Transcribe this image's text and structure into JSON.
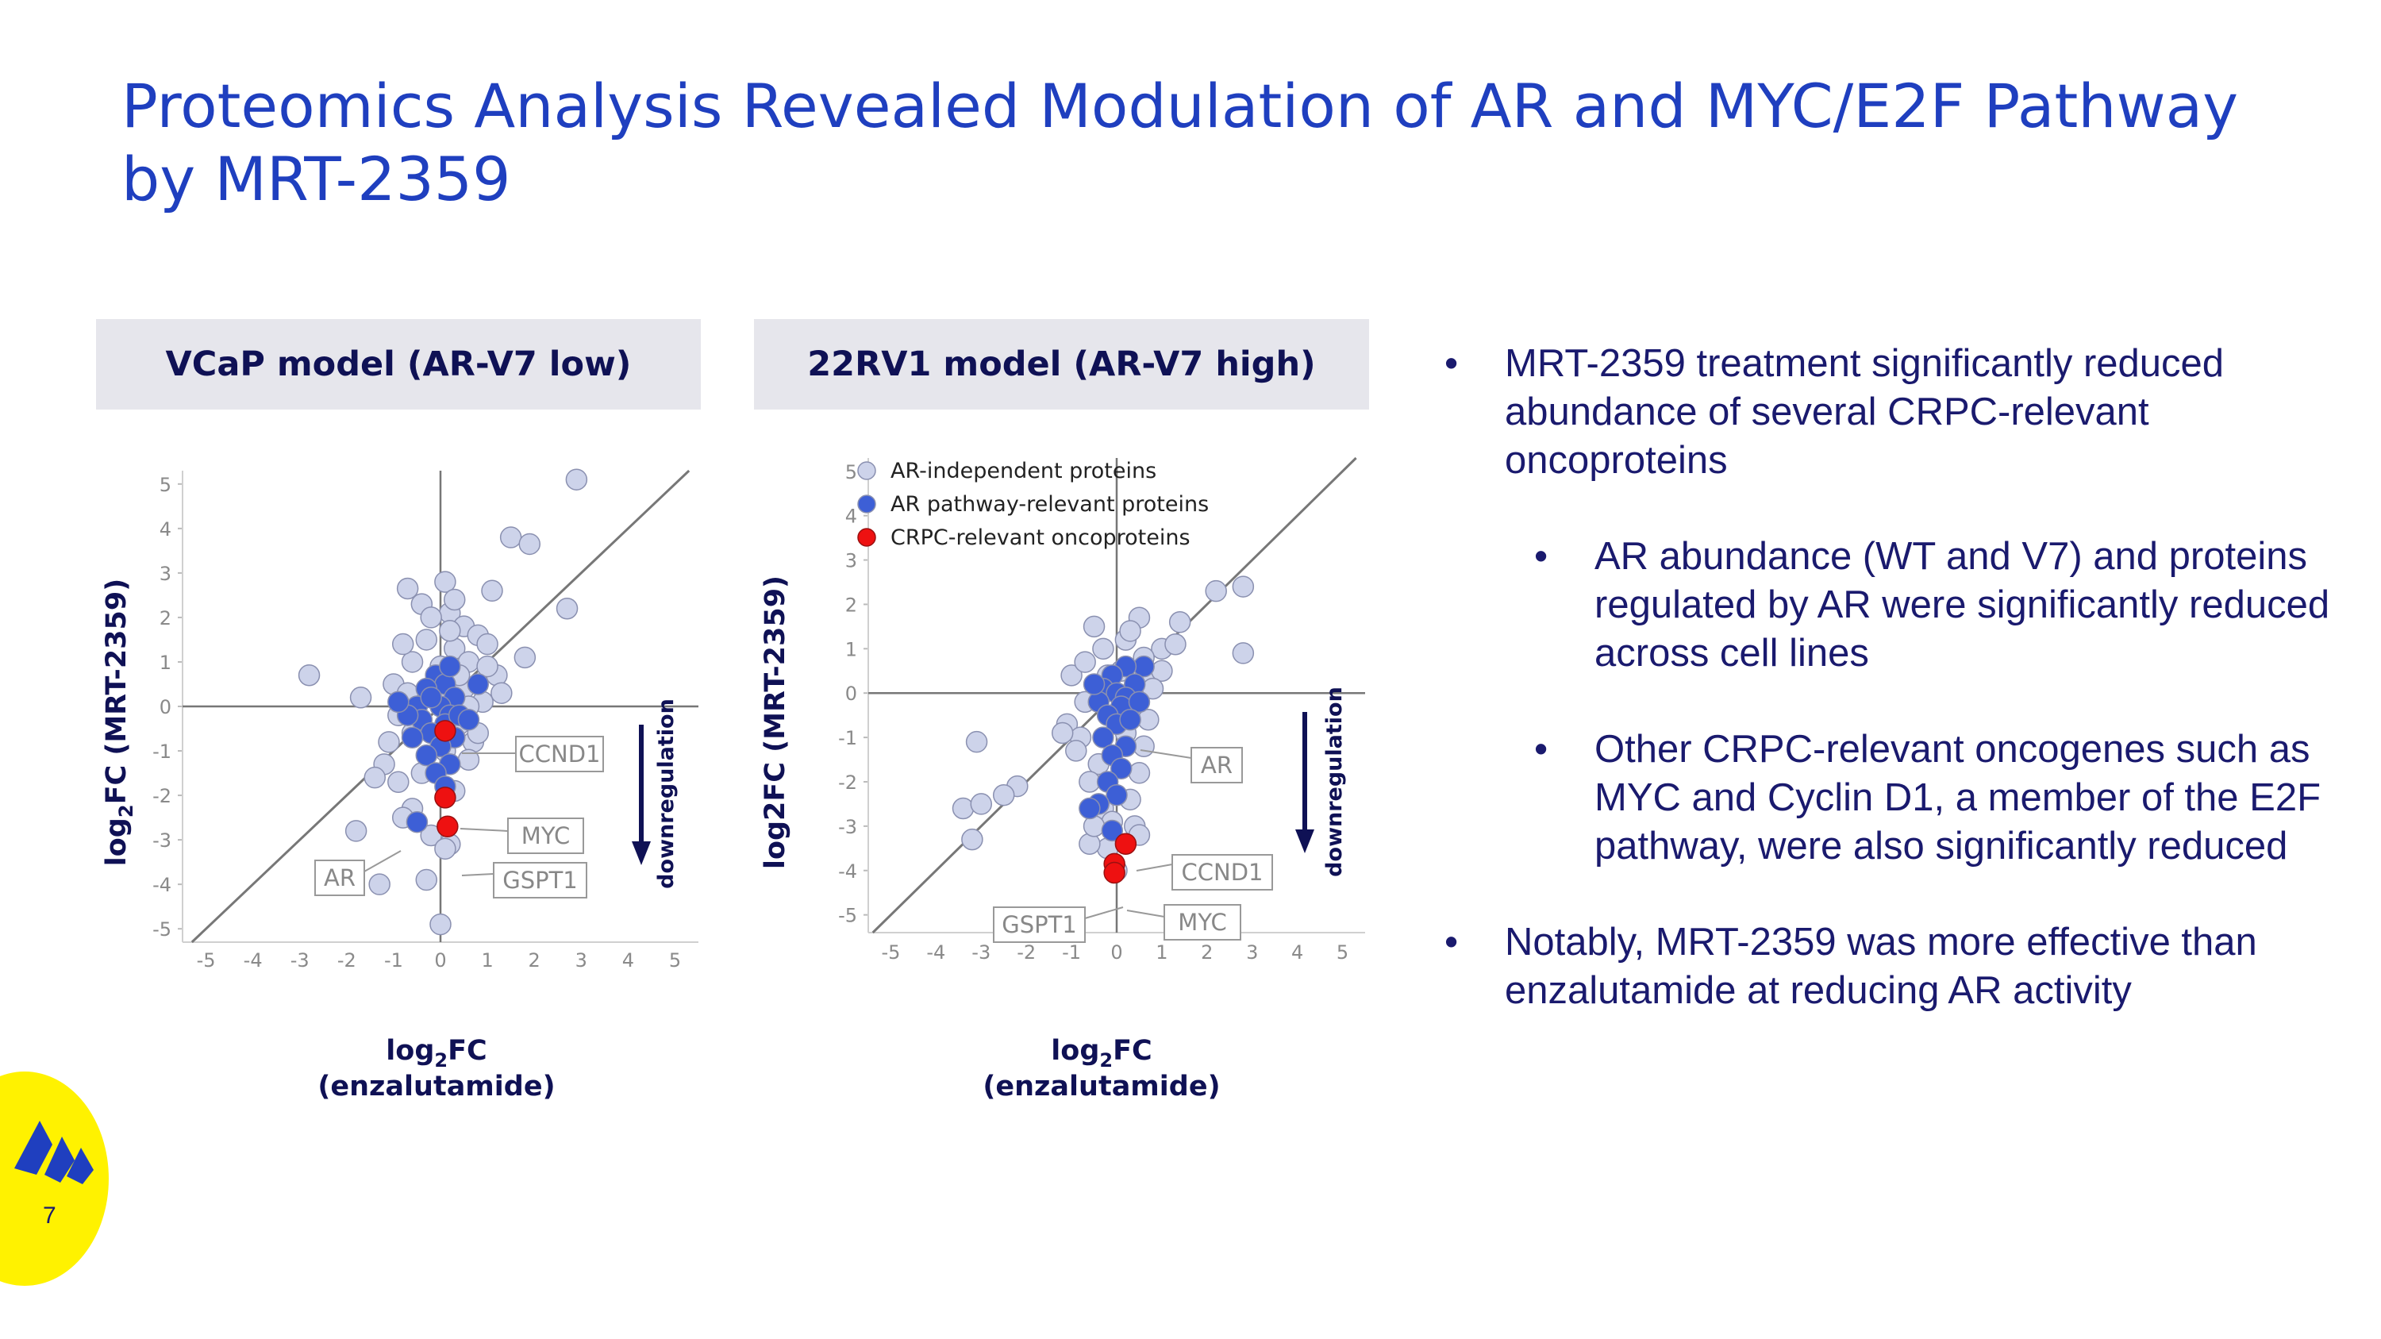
{
  "title": "Proteomics Analysis Revealed Modulation of AR and MYC/E2F Pathway by MRT-2359",
  "bullets": [
    {
      "text": "MRT-2359 treatment significantly reduced abundance of several CRPC-relevant oncoproteins",
      "marker": "•"
    },
    {
      "text": "AR abundance (WT and V7) and proteins regulated by AR were significantly reduced across cell lines",
      "marker": "•"
    },
    {
      "text": "Other CRPC-relevant oncogenes such as MYC and Cyclin D1, a member of the E2F pathway, were also significantly reduced",
      "marker": "•"
    },
    {
      "text": "Notably, MRT-2359 was more effective than enzalutamide at reducing AR activity",
      "marker": "•"
    }
  ],
  "page_number": "7",
  "logo_icon": "company-logo-icon",
  "colors": {
    "title": "#1f3fbf",
    "text": "#1a1a6e",
    "header_bg": "#e6e6ec",
    "ar_independent": "#cdd3ea",
    "ar_pathway": "#3d5fd6",
    "crpc": "#ee1111",
    "logo_bg": "#fff200",
    "logo_mark": "#1f3fbf"
  },
  "chart_data": [
    {
      "type": "scatter",
      "title": "VCaP model (AR-V7 low)",
      "xlabel_prefix": "log",
      "xlabel_sub": "2",
      "xlabel_suffix": "FC",
      "xlabel_line2": "(enzalutamide)",
      "ylabel_prefix": "log",
      "ylabel_sub": "2",
      "ylabel_suffix": "FC (MRT-2359)",
      "xlim": [
        -5.5,
        5.5
      ],
      "ylim": [
        -5.3,
        5.3
      ],
      "x_ticks": [
        "-5",
        "-4",
        "-3",
        "-2",
        "-1",
        "0",
        "1",
        "2",
        "3",
        "4",
        "5"
      ],
      "y_ticks": [
        "5",
        "4",
        "3",
        "2",
        "1",
        "0",
        "-1",
        "-2",
        "-3",
        "-4",
        "-5"
      ],
      "diagonal": true,
      "arrow_label": "downregulation",
      "series": [
        {
          "name": "AR-independent proteins",
          "color": "#cdd3ea",
          "points": [
            [
              2.9,
              5.1
            ],
            [
              1.5,
              3.8
            ],
            [
              1.9,
              3.65
            ],
            [
              -0.7,
              2.65
            ],
            [
              0.1,
              2.8
            ],
            [
              1.1,
              2.6
            ],
            [
              -0.4,
              2.3
            ],
            [
              0.2,
              2.1
            ],
            [
              -0.2,
              2.0
            ],
            [
              0.5,
              1.8
            ],
            [
              0.8,
              1.6
            ],
            [
              1.0,
              1.4
            ],
            [
              1.8,
              1.1
            ],
            [
              2.7,
              2.2
            ],
            [
              -2.8,
              0.7
            ],
            [
              -1.7,
              0.2
            ],
            [
              -1.0,
              0.5
            ],
            [
              -0.6,
              1.0
            ],
            [
              0.3,
              1.3
            ],
            [
              0.6,
              1.0
            ],
            [
              1.2,
              0.7
            ],
            [
              -1.2,
              -1.3
            ],
            [
              -1.4,
              -1.6
            ],
            [
              -0.9,
              -1.7
            ],
            [
              -0.6,
              -2.3
            ],
            [
              -0.8,
              -2.5
            ],
            [
              -1.3,
              -4.0
            ],
            [
              -0.3,
              -3.9
            ],
            [
              0.0,
              -4.9
            ],
            [
              0.2,
              -3.1
            ],
            [
              -0.5,
              0.2
            ],
            [
              0.4,
              -0.4
            ],
            [
              0.7,
              -0.8
            ],
            [
              0.6,
              -1.2
            ],
            [
              0.3,
              -1.9
            ],
            [
              -0.2,
              -2.9
            ],
            [
              1.3,
              0.3
            ],
            [
              -1.8,
              -2.8
            ],
            [
              0.9,
              0.1
            ],
            [
              0.1,
              -3.2
            ],
            [
              -0.9,
              -0.2
            ],
            [
              -0.1,
              0.3
            ],
            [
              0.5,
              0.4
            ],
            [
              -0.6,
              -0.6
            ],
            [
              0.2,
              1.7
            ],
            [
              -0.3,
              1.5
            ],
            [
              1.0,
              0.9
            ],
            [
              -0.4,
              -1.5
            ],
            [
              0.8,
              -0.6
            ],
            [
              -1.1,
              -0.8
            ],
            [
              0.1,
              -1.0
            ],
            [
              0.0,
              0.9
            ],
            [
              0.4,
              0.7
            ],
            [
              -0.7,
              0.3
            ],
            [
              0.6,
              0.0
            ],
            [
              -0.8,
              1.4
            ],
            [
              0.3,
              2.4
            ]
          ]
        },
        {
          "name": "AR pathway-relevant proteins",
          "color": "#3d5fd6",
          "points": [
            [
              -0.1,
              0.7
            ],
            [
              0.1,
              0.5
            ],
            [
              -0.3,
              0.4
            ],
            [
              0.3,
              0.2
            ],
            [
              -0.5,
              0.0
            ],
            [
              0.0,
              0.0
            ],
            [
              0.2,
              -0.2
            ],
            [
              -0.4,
              -0.3
            ],
            [
              0.1,
              -0.4
            ],
            [
              -0.2,
              -0.6
            ],
            [
              0.3,
              -0.7
            ],
            [
              -0.6,
              -0.7
            ],
            [
              0.0,
              -0.9
            ],
            [
              -0.3,
              -1.1
            ],
            [
              0.2,
              -1.3
            ],
            [
              -0.1,
              -1.5
            ],
            [
              0.1,
              -1.8
            ],
            [
              -0.5,
              -2.6
            ],
            [
              0.8,
              0.5
            ],
            [
              -0.2,
              0.2
            ],
            [
              0.4,
              -0.2
            ],
            [
              -0.7,
              -0.2
            ],
            [
              -0.9,
              0.1
            ],
            [
              0.6,
              -0.3
            ],
            [
              0.2,
              0.9
            ]
          ]
        },
        {
          "name": "CRPC-relevant oncoproteins",
          "color": "#ee1111",
          "points": [
            [
              0.1,
              -0.55
            ],
            [
              0.1,
              -2.05
            ],
            [
              0.15,
              -2.7
            ]
          ]
        }
      ],
      "annotations": [
        {
          "label": "CCND1"
        },
        {
          "label": "MYC"
        },
        {
          "label": "GSPT1"
        },
        {
          "label": "AR"
        }
      ]
    },
    {
      "type": "scatter",
      "title": "22RV1 model (AR-V7 high)",
      "xlabel_prefix": "log",
      "xlabel_sub": "2",
      "xlabel_suffix": "FC",
      "xlabel_line2": "(enzalutamide)",
      "ylabel": "log2FC (MRT-2359)",
      "xlim": [
        -5.5,
        5.5
      ],
      "ylim": [
        -5.4,
        5.3
      ],
      "x_ticks": [
        "-5",
        "-4",
        "-3",
        "-2",
        "-1",
        "0",
        "1",
        "2",
        "3",
        "4",
        "5"
      ],
      "y_ticks": [
        "5",
        "4",
        "3",
        "2",
        "1",
        "0",
        "-1",
        "-2",
        "-3",
        "-4",
        "-5"
      ],
      "diagonal": true,
      "arrow_label": "downregulation",
      "legend": [
        {
          "label": "AR-independent proteins",
          "color": "#cdd3ea"
        },
        {
          "label": "AR pathway-relevant proteins",
          "color": "#3d5fd6"
        },
        {
          "label": "CRPC-relevant oncoproteins",
          "color": "#ee1111"
        }
      ],
      "series": [
        {
          "name": "AR-independent proteins",
          "color": "#cdd3ea",
          "points": [
            [
              2.8,
              2.4
            ],
            [
              2.2,
              2.3
            ],
            [
              1.4,
              1.6
            ],
            [
              1.0,
              1.0
            ],
            [
              0.5,
              1.7
            ],
            [
              -0.5,
              1.5
            ],
            [
              0.2,
              1.2
            ],
            [
              -0.3,
              1.0
            ],
            [
              0.6,
              0.8
            ],
            [
              1.3,
              1.1
            ],
            [
              2.8,
              0.9
            ],
            [
              -1.0,
              0.4
            ],
            [
              -0.7,
              0.7
            ],
            [
              0.7,
              0.3
            ],
            [
              -3.1,
              -1.1
            ],
            [
              -2.2,
              -2.1
            ],
            [
              -2.5,
              -2.3
            ],
            [
              -3.4,
              -2.6
            ],
            [
              -3.0,
              -2.5
            ],
            [
              -3.2,
              -3.3
            ],
            [
              -0.2,
              -3.5
            ],
            [
              -0.6,
              -3.4
            ],
            [
              0.4,
              -3.0
            ],
            [
              0.0,
              -4.0
            ],
            [
              0.5,
              -3.2
            ],
            [
              -1.1,
              -0.7
            ],
            [
              -0.8,
              -1.0
            ],
            [
              -0.4,
              -1.6
            ],
            [
              -0.6,
              -2.0
            ],
            [
              -0.3,
              -2.6
            ],
            [
              0.3,
              -2.4
            ],
            [
              0.5,
              -1.8
            ],
            [
              0.6,
              -1.2
            ],
            [
              0.2,
              -0.9
            ],
            [
              -0.1,
              -2.9
            ],
            [
              1.0,
              0.5
            ],
            [
              0.8,
              0.1
            ],
            [
              -1.2,
              -0.9
            ],
            [
              0.1,
              0.5
            ],
            [
              -0.2,
              0.4
            ],
            [
              0.4,
              -0.5
            ],
            [
              -0.9,
              -1.3
            ],
            [
              0.3,
              1.4
            ],
            [
              -0.5,
              -3.0
            ],
            [
              0.7,
              -0.6
            ],
            [
              -0.7,
              -0.2
            ]
          ]
        },
        {
          "name": "AR pathway-relevant proteins",
          "color": "#3d5fd6",
          "points": [
            [
              0.6,
              0.6
            ],
            [
              0.2,
              0.6
            ],
            [
              -0.1,
              0.4
            ],
            [
              0.4,
              0.2
            ],
            [
              -0.3,
              0.1
            ],
            [
              0.0,
              0.0
            ],
            [
              0.2,
              -0.1
            ],
            [
              -0.4,
              -0.2
            ],
            [
              0.1,
              -0.3
            ],
            [
              -0.2,
              -0.5
            ],
            [
              0.0,
              -0.7
            ],
            [
              -0.3,
              -1.0
            ],
            [
              0.2,
              -1.2
            ],
            [
              -0.1,
              -1.4
            ],
            [
              0.1,
              -1.7
            ],
            [
              -0.2,
              -2.0
            ],
            [
              0.0,
              -2.3
            ],
            [
              -0.4,
              -2.5
            ],
            [
              -0.6,
              -2.6
            ],
            [
              0.5,
              -0.2
            ],
            [
              -0.5,
              0.2
            ],
            [
              0.3,
              -0.6
            ],
            [
              -0.1,
              -3.1
            ]
          ]
        },
        {
          "name": "CRPC-relevant oncoproteins",
          "color": "#ee1111",
          "points": [
            [
              0.2,
              -3.4
            ],
            [
              -0.05,
              -3.85
            ],
            [
              -0.05,
              -4.05
            ]
          ]
        }
      ],
      "annotations": [
        {
          "label": "AR"
        },
        {
          "label": "CCND1"
        },
        {
          "label": "MYC"
        },
        {
          "label": "GSPT1"
        }
      ]
    }
  ]
}
